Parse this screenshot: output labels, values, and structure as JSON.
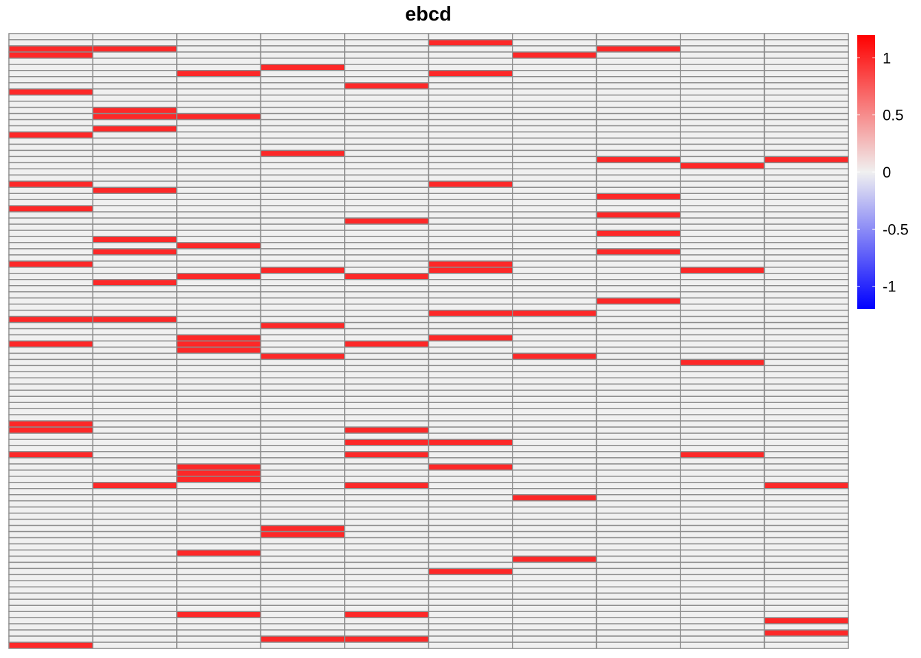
{
  "chart_data": {
    "type": "heatmap",
    "title": "ebcd",
    "n_rows": 100,
    "n_cols": 10,
    "row_labels": [],
    "col_labels": [],
    "value_range": [
      -1.2,
      1.2
    ],
    "color_scale": {
      "low": "#0000FF",
      "mid": "#F0F0F0",
      "high": "#FF0000"
    },
    "cell_border_color": "#8C8C8C",
    "legend": {
      "ticks": [
        {
          "value": 1,
          "label": "1"
        },
        {
          "value": 0.5,
          "label": "0.5"
        },
        {
          "value": 0,
          "label": "0"
        },
        {
          "value": -0.5,
          "label": "-0.5"
        },
        {
          "value": -1,
          "label": "-1"
        }
      ]
    },
    "nonzero_cells": [
      {
        "col": 1,
        "rows": [
          2,
          3,
          9,
          16,
          24,
          28,
          37,
          46,
          50,
          63,
          64,
          68,
          99
        ],
        "value": 1
      },
      {
        "col": 2,
        "rows": [
          2,
          12,
          13,
          15,
          25,
          33,
          35,
          40,
          46,
          73
        ],
        "value": 1
      },
      {
        "col": 3,
        "rows": [
          6,
          13,
          34,
          39,
          49,
          50,
          51,
          70,
          71,
          72,
          84,
          94
        ],
        "value": 1
      },
      {
        "col": 4,
        "rows": [
          5,
          19,
          38,
          47,
          52,
          80,
          81,
          98
        ],
        "value": 1
      },
      {
        "col": 5,
        "rows": [
          8,
          30,
          39,
          50,
          64,
          66,
          68,
          73,
          94,
          98
        ],
        "value": 1
      },
      {
        "col": 6,
        "rows": [
          1,
          6,
          24,
          37,
          38,
          45,
          49,
          66,
          70,
          87
        ],
        "value": 1
      },
      {
        "col": 7,
        "rows": [
          3,
          45,
          52,
          75,
          85
        ],
        "value": 1
      },
      {
        "col": 8,
        "rows": [
          2,
          20,
          26,
          29,
          32,
          35,
          43
        ],
        "value": 1
      },
      {
        "col": 9,
        "rows": [
          21,
          38,
          53,
          68
        ],
        "value": 1
      },
      {
        "col": 10,
        "rows": [
          20,
          73,
          95,
          97
        ],
        "value": 1
      }
    ]
  }
}
